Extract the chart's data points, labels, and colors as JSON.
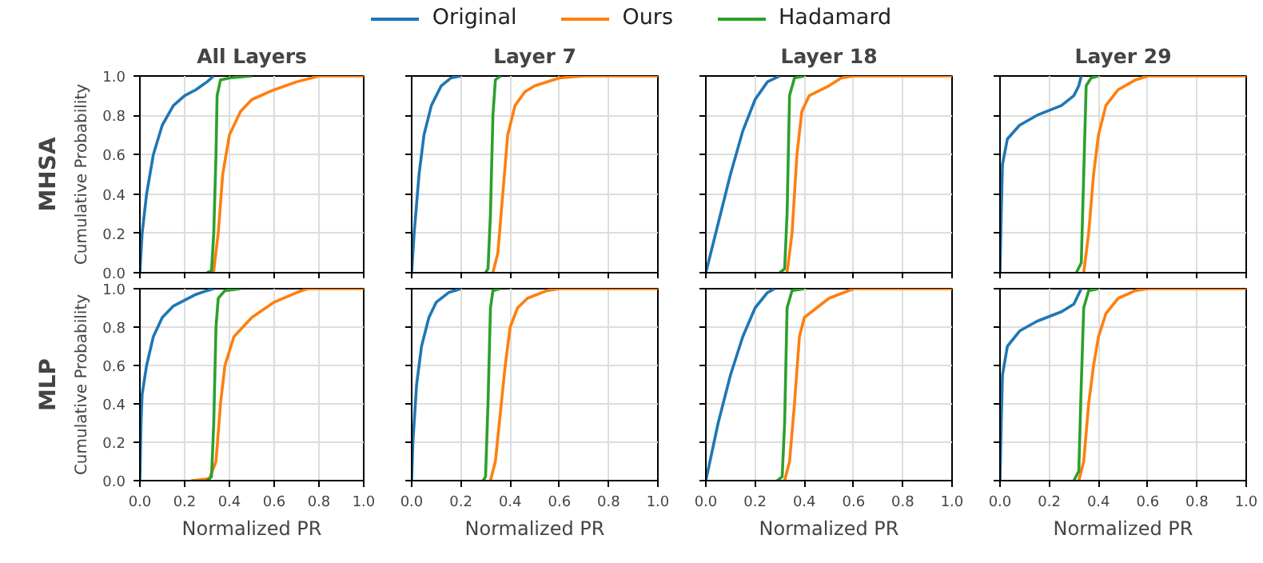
{
  "chart_data": [
    {
      "type": "line",
      "title": "All Layers",
      "ylabel": "Cumulative Probability",
      "annotations": [
        "MHSA"
      ],
      "legend": "top",
      "grid": true,
      "tick_labels": "y",
      "xlim": [
        0,
        1
      ],
      "ylim": [
        0,
        1
      ],
      "xticks": [
        0,
        0.2,
        0.4,
        0.6,
        0.8,
        1
      ],
      "yticks": [
        {
          "value": 0,
          "label": "0.0"
        },
        {
          "value": 0.2,
          "label": "0.2"
        },
        {
          "value": 0.4,
          "label": "0.4"
        },
        {
          "value": 0.6,
          "label": "0.6"
        },
        {
          "value": 0.8,
          "label": "0.8"
        },
        {
          "value": 1,
          "label": "1.0"
        }
      ],
      "series": [
        {
          "name": "Original",
          "color": "#1f77b4",
          "x": [
            0,
            0.01,
            0.03,
            0.06,
            0.1,
            0.15,
            0.2,
            0.25,
            0.3,
            0.33
          ],
          "values": [
            0,
            0.2,
            0.4,
            0.6,
            0.75,
            0.85,
            0.9,
            0.93,
            0.97,
            1.0
          ]
        },
        {
          "name": "Ours",
          "color": "#ff7f0e",
          "x": [
            0.3,
            0.33,
            0.35,
            0.37,
            0.4,
            0.45,
            0.5,
            0.6,
            0.7,
            0.8,
            1.0
          ],
          "values": [
            0,
            0.01,
            0.2,
            0.5,
            0.7,
            0.82,
            0.88,
            0.93,
            0.97,
            1.0,
            1.0
          ]
        },
        {
          "name": "Hadamard",
          "color": "#2ca02c",
          "x": [
            0.3,
            0.32,
            0.33,
            0.34,
            0.345,
            0.36,
            0.4,
            0.5
          ],
          "values": [
            0,
            0.01,
            0.2,
            0.6,
            0.9,
            0.98,
            0.99,
            1.0
          ]
        }
      ]
    },
    {
      "type": "line",
      "title": "Layer 7",
      "grid": true,
      "tick_labels": false,
      "xlim": [
        0,
        1
      ],
      "ylim": [
        0,
        1
      ],
      "xticks": [
        0,
        0.2,
        0.4,
        0.6,
        0.8,
        1
      ],
      "yticks": [
        0,
        0.2,
        0.4,
        0.6,
        0.8,
        1
      ],
      "series": [
        {
          "color": "#1f77b4",
          "x": [
            0,
            0.01,
            0.03,
            0.05,
            0.08,
            0.12,
            0.16,
            0.2
          ],
          "values": [
            0,
            0.2,
            0.5,
            0.7,
            0.85,
            0.95,
            0.99,
            1.0
          ]
        },
        {
          "color": "#ff7f0e",
          "x": [
            0.33,
            0.35,
            0.37,
            0.39,
            0.42,
            0.46,
            0.5,
            0.6,
            0.7,
            1.0
          ],
          "values": [
            0,
            0.1,
            0.4,
            0.7,
            0.85,
            0.92,
            0.95,
            0.99,
            1.0,
            1.0
          ]
        },
        {
          "color": "#2ca02c",
          "x": [
            0.3,
            0.31,
            0.32,
            0.33,
            0.34,
            0.36
          ],
          "values": [
            0,
            0.02,
            0.3,
            0.8,
            0.98,
            1.0
          ]
        }
      ]
    },
    {
      "type": "line",
      "title": "Layer 18",
      "grid": true,
      "tick_labels": false,
      "xlim": [
        0,
        1
      ],
      "ylim": [
        0,
        1
      ],
      "xticks": [
        0,
        0.2,
        0.4,
        0.6,
        0.8,
        1
      ],
      "yticks": [
        0,
        0.2,
        0.4,
        0.6,
        0.8,
        1
      ],
      "series": [
        {
          "color": "#1f77b4",
          "x": [
            0,
            0.05,
            0.1,
            0.15,
            0.2,
            0.25,
            0.3
          ],
          "values": [
            0,
            0.25,
            0.5,
            0.72,
            0.88,
            0.97,
            1.0
          ]
        },
        {
          "color": "#ff7f0e",
          "x": [
            0.33,
            0.35,
            0.37,
            0.39,
            0.42,
            0.5,
            0.55,
            0.6,
            1.0
          ],
          "values": [
            0,
            0.2,
            0.6,
            0.82,
            0.9,
            0.95,
            0.99,
            1.0,
            1.0
          ]
        },
        {
          "color": "#2ca02c",
          "x": [
            0.3,
            0.32,
            0.33,
            0.34,
            0.36,
            0.4
          ],
          "values": [
            0,
            0.02,
            0.3,
            0.9,
            0.99,
            1.0
          ]
        }
      ]
    },
    {
      "type": "line",
      "title": "Layer 29",
      "grid": true,
      "tick_labels": false,
      "xlim": [
        0,
        1
      ],
      "ylim": [
        0,
        1
      ],
      "xticks": [
        0,
        0.2,
        0.4,
        0.6,
        0.8,
        1
      ],
      "yticks": [
        0,
        0.2,
        0.4,
        0.6,
        0.8,
        1
      ],
      "series": [
        {
          "color": "#1f77b4",
          "x": [
            0,
            0.005,
            0.01,
            0.03,
            0.08,
            0.15,
            0.25,
            0.3,
            0.32,
            0.33
          ],
          "values": [
            0,
            0.3,
            0.55,
            0.68,
            0.75,
            0.8,
            0.85,
            0.9,
            0.95,
            1.0
          ]
        },
        {
          "color": "#ff7f0e",
          "x": [
            0.34,
            0.36,
            0.38,
            0.4,
            0.43,
            0.48,
            0.55,
            0.6,
            1.0
          ],
          "values": [
            0,
            0.2,
            0.5,
            0.7,
            0.85,
            0.93,
            0.98,
            1.0,
            1.0
          ]
        },
        {
          "color": "#2ca02c",
          "x": [
            0.31,
            0.33,
            0.34,
            0.35,
            0.37,
            0.4
          ],
          "values": [
            0,
            0.05,
            0.5,
            0.95,
            0.99,
            1.0
          ]
        }
      ]
    },
    {
      "type": "line",
      "xlabel": "Normalized PR",
      "ylabel": "Cumulative Probability",
      "annotations": [
        "MLP"
      ],
      "grid": true,
      "xlim": [
        0,
        1
      ],
      "ylim": [
        0,
        1
      ],
      "xticks": [
        {
          "value": 0,
          "label": "0.0"
        },
        {
          "value": 0.2,
          "label": "0.2"
        },
        {
          "value": 0.4,
          "label": "0.4"
        },
        {
          "value": 0.6,
          "label": "0.6"
        },
        {
          "value": 0.8,
          "label": "0.8"
        },
        {
          "value": 1,
          "label": "1.0"
        }
      ],
      "yticks": [
        {
          "value": 0,
          "label": "0.0"
        },
        {
          "value": 0.2,
          "label": "0.2"
        },
        {
          "value": 0.4,
          "label": "0.4"
        },
        {
          "value": 0.6,
          "label": "0.6"
        },
        {
          "value": 0.8,
          "label": "0.8"
        },
        {
          "value": 1,
          "label": "1.0"
        }
      ],
      "series": [
        {
          "color": "#1f77b4",
          "x": [
            0,
            0.005,
            0.01,
            0.03,
            0.06,
            0.1,
            0.15,
            0.2,
            0.25,
            0.3,
            0.33
          ],
          "values": [
            0,
            0.3,
            0.45,
            0.6,
            0.75,
            0.85,
            0.91,
            0.94,
            0.97,
            0.99,
            1.0
          ]
        },
        {
          "color": "#ff7f0e",
          "x": [
            0.23,
            0.31,
            0.34,
            0.36,
            0.38,
            0.42,
            0.5,
            0.6,
            0.7,
            0.75,
            1.0
          ],
          "values": [
            0,
            0.01,
            0.1,
            0.4,
            0.6,
            0.75,
            0.85,
            0.93,
            0.98,
            1.0,
            1.0
          ]
        },
        {
          "color": "#2ca02c",
          "x": [
            0.3,
            0.32,
            0.33,
            0.34,
            0.35,
            0.38,
            0.45
          ],
          "values": [
            0,
            0.02,
            0.3,
            0.8,
            0.95,
            0.99,
            1.0
          ]
        }
      ]
    },
    {
      "type": "line",
      "xlabel": "Normalized PR",
      "grid": true,
      "tick_labels": "x",
      "xlim": [
        0,
        1
      ],
      "ylim": [
        0,
        1
      ],
      "xticks": [
        {
          "value": 0,
          "label": "0.0"
        },
        {
          "value": 0.2,
          "label": "0.2"
        },
        {
          "value": 0.4,
          "label": "0.4"
        },
        {
          "value": 0.6,
          "label": "0.6"
        },
        {
          "value": 0.8,
          "label": "0.8"
        },
        {
          "value": 1,
          "label": "1.0"
        }
      ],
      "yticks": [
        0,
        0.2,
        0.4,
        0.6,
        0.8,
        1
      ],
      "series": [
        {
          "color": "#1f77b4",
          "x": [
            0,
            0.005,
            0.02,
            0.04,
            0.07,
            0.1,
            0.15,
            0.2
          ],
          "values": [
            0,
            0.2,
            0.5,
            0.7,
            0.85,
            0.93,
            0.98,
            1.0
          ]
        },
        {
          "color": "#ff7f0e",
          "x": [
            0.32,
            0.34,
            0.36,
            0.38,
            0.4,
            0.43,
            0.47,
            0.55,
            0.6,
            1.0
          ],
          "values": [
            0,
            0.1,
            0.35,
            0.6,
            0.8,
            0.9,
            0.95,
            0.99,
            1.0,
            1.0
          ]
        },
        {
          "color": "#2ca02c",
          "x": [
            0.29,
            0.3,
            0.31,
            0.32,
            0.33,
            0.36
          ],
          "values": [
            0,
            0.02,
            0.4,
            0.9,
            0.99,
            1.0
          ]
        }
      ]
    },
    {
      "type": "line",
      "xlabel": "Normalized PR",
      "grid": true,
      "tick_labels": "x",
      "xlim": [
        0,
        1
      ],
      "ylim": [
        0,
        1
      ],
      "xticks": [
        {
          "value": 0,
          "label": "0.0"
        },
        {
          "value": 0.2,
          "label": "0.2"
        },
        {
          "value": 0.4,
          "label": "0.4"
        },
        {
          "value": 0.6,
          "label": "0.6"
        },
        {
          "value": 0.8,
          "label": "0.8"
        },
        {
          "value": 1,
          "label": "1.0"
        }
      ],
      "yticks": [
        0,
        0.2,
        0.4,
        0.6,
        0.8,
        1
      ],
      "series": [
        {
          "color": "#1f77b4",
          "x": [
            0,
            0.05,
            0.1,
            0.15,
            0.2,
            0.25,
            0.28
          ],
          "values": [
            0,
            0.3,
            0.55,
            0.75,
            0.9,
            0.98,
            1.0
          ]
        },
        {
          "color": "#ff7f0e",
          "x": [
            0.32,
            0.34,
            0.36,
            0.38,
            0.4,
            0.45,
            0.5,
            0.6,
            1.0
          ],
          "values": [
            0,
            0.1,
            0.4,
            0.75,
            0.85,
            0.9,
            0.95,
            1.0,
            1.0
          ]
        },
        {
          "color": "#2ca02c",
          "x": [
            0.29,
            0.31,
            0.32,
            0.33,
            0.35,
            0.4
          ],
          "values": [
            0,
            0.02,
            0.3,
            0.9,
            0.99,
            1.0
          ]
        }
      ]
    },
    {
      "type": "line",
      "xlabel": "Normalized PR",
      "grid": true,
      "tick_labels": "x",
      "xlim": [
        0,
        1
      ],
      "ylim": [
        0,
        1
      ],
      "xticks": [
        {
          "value": 0,
          "label": "0.0"
        },
        {
          "value": 0.2,
          "label": "0.2"
        },
        {
          "value": 0.4,
          "label": "0.4"
        },
        {
          "value": 0.6,
          "label": "0.6"
        },
        {
          "value": 0.8,
          "label": "0.8"
        },
        {
          "value": 1,
          "label": "1.0"
        }
      ],
      "yticks": [
        0,
        0.2,
        0.4,
        0.6,
        0.8,
        1
      ],
      "series": [
        {
          "color": "#1f77b4",
          "x": [
            0,
            0.005,
            0.01,
            0.03,
            0.08,
            0.15,
            0.25,
            0.3,
            0.33
          ],
          "values": [
            0,
            0.3,
            0.55,
            0.7,
            0.78,
            0.83,
            0.88,
            0.92,
            1.0
          ]
        },
        {
          "color": "#ff7f0e",
          "x": [
            0.32,
            0.34,
            0.36,
            0.38,
            0.4,
            0.43,
            0.48,
            0.55,
            0.6,
            1.0
          ],
          "values": [
            0,
            0.1,
            0.4,
            0.6,
            0.75,
            0.87,
            0.95,
            0.99,
            1.0,
            1.0
          ]
        },
        {
          "color": "#2ca02c",
          "x": [
            0.3,
            0.32,
            0.33,
            0.34,
            0.36,
            0.4
          ],
          "values": [
            0,
            0.05,
            0.5,
            0.9,
            0.99,
            1.0
          ]
        }
      ]
    }
  ]
}
